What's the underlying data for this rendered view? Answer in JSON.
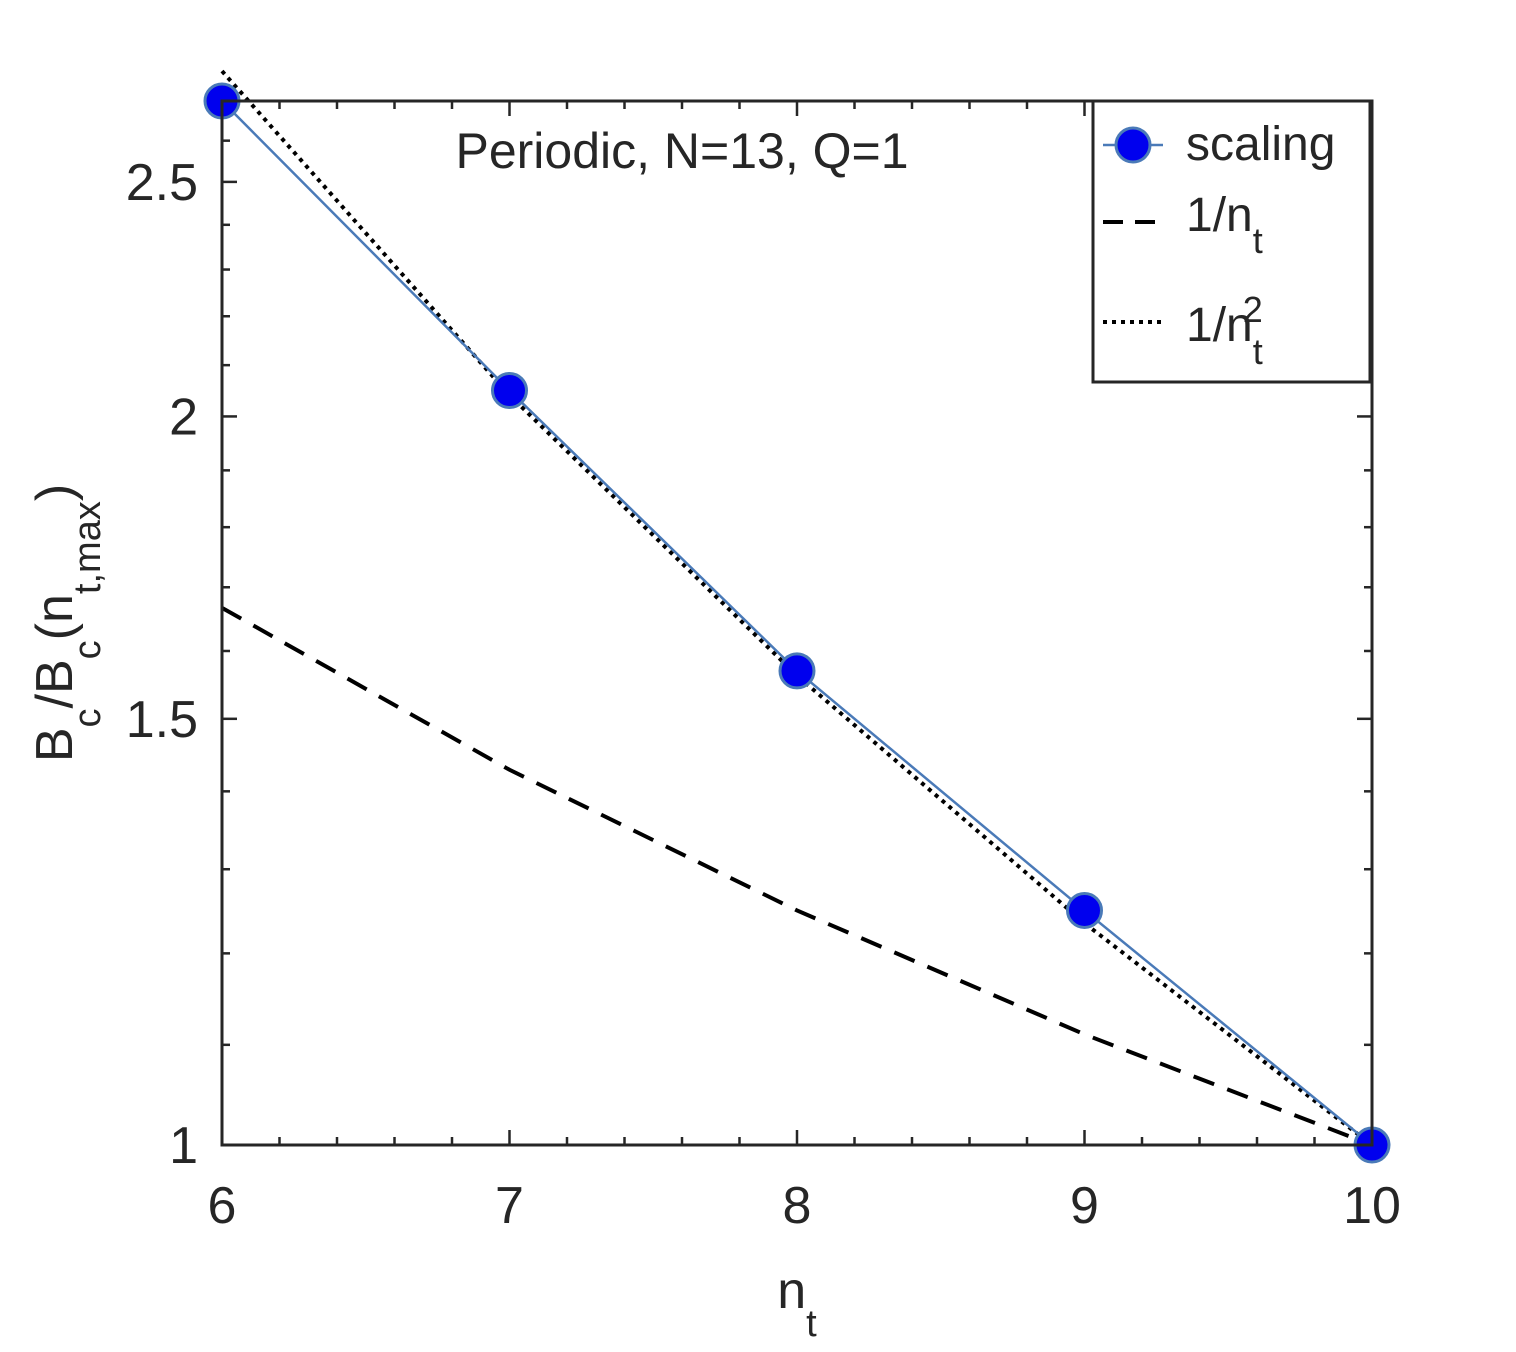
{
  "chart_data": {
    "type": "line",
    "title": "Periodic, N=13, Q=1",
    "xlabel": {
      "base": "n",
      "sub": "t"
    },
    "ylabel": {
      "p1": "B",
      "s1": "c",
      "p2": "/B",
      "s2": "c",
      "p3": "(n",
      "s3": "t,max",
      "p4": ")"
    },
    "xlim": [
      6,
      10
    ],
    "ylog": true,
    "ylim": [
      1,
      2.7
    ],
    "x_ticks": [
      6,
      7,
      8,
      9,
      10
    ],
    "x_tick_labels": [
      "6",
      "7",
      "8",
      "9",
      "10"
    ],
    "y_ticks": [
      1,
      1.5,
      2,
      2.5
    ],
    "y_tick_labels": [
      "1",
      "1.5",
      "2",
      "2.5"
    ],
    "grid": false,
    "legend_position": "top-right",
    "series": [
      {
        "key": "scaling",
        "name": "scaling",
        "style": "line-marker",
        "color": "#4a7ab8",
        "marker_color": "#0000ee",
        "x": [
          6,
          7,
          8,
          9,
          10
        ],
        "y": [
          2.7,
          2.05,
          1.57,
          1.25,
          1.0
        ]
      },
      {
        "key": "inv_nt",
        "name": {
          "base": "1/n",
          "sub": "t",
          "sup": ""
        },
        "style": "dashed",
        "color": "#000000",
        "x": [
          6,
          7,
          8,
          9,
          10
        ],
        "y": [
          1.667,
          1.429,
          1.25,
          1.111,
          1.0
        ]
      },
      {
        "key": "inv_nt2",
        "name": {
          "base": "1/n",
          "sub": "t",
          "sup": "2"
        },
        "style": "dotted",
        "color": "#000000",
        "x": [
          6,
          7,
          8,
          9,
          10
        ],
        "y": [
          2.778,
          2.041,
          1.563,
          1.235,
          1.0
        ]
      }
    ]
  }
}
